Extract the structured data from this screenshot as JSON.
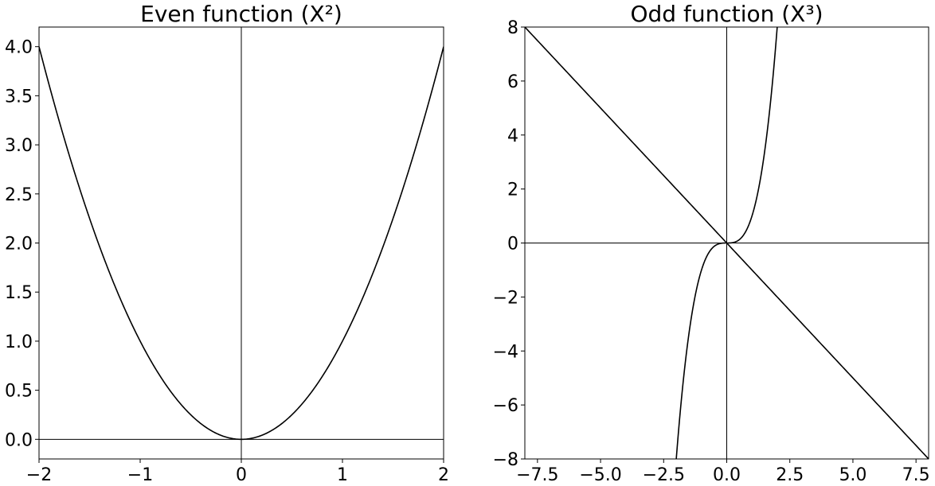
{
  "chart_data": [
    {
      "type": "line",
      "title": "Even function (X²)",
      "xlabel": "",
      "ylabel": "",
      "xlim": [
        -2,
        2
      ],
      "ylim": [
        -0.2,
        4.2
      ],
      "xticks": [
        -2,
        -1,
        0,
        1,
        2
      ],
      "xtick_labels": [
        "−2",
        "−1",
        "0",
        "1",
        "2"
      ],
      "yticks": [
        0.0,
        0.5,
        1.0,
        1.5,
        2.0,
        2.5,
        3.0,
        3.5,
        4.0
      ],
      "ytick_labels": [
        "0.0",
        "0.5",
        "1.0",
        "1.5",
        "2.0",
        "2.5",
        "3.0",
        "3.5",
        "4.0"
      ],
      "grid": false,
      "reference_lines": [
        {
          "axis": "x",
          "value": 0
        },
        {
          "axis": "y",
          "value": 0
        }
      ],
      "series": [
        {
          "name": "x^2",
          "color": "#000000",
          "x_range": [
            -2,
            2
          ],
          "expression": "x^2"
        }
      ]
    },
    {
      "type": "line",
      "title": "Odd function (X³)",
      "xlabel": "",
      "ylabel": "",
      "xlim": [
        -8,
        8
      ],
      "ylim": [
        -8,
        8
      ],
      "xticks": [
        -7.5,
        -5.0,
        -2.5,
        0.0,
        2.5,
        5.0,
        7.5
      ],
      "xtick_labels": [
        "−7.5",
        "−5.0",
        "−2.5",
        "0.0",
        "2.5",
        "5.0",
        "7.5"
      ],
      "yticks": [
        -8,
        -6,
        -4,
        -2,
        0,
        2,
        4,
        6,
        8
      ],
      "ytick_labels": [
        "−8",
        "−6",
        "−4",
        "−2",
        "0",
        "2",
        "4",
        "6",
        "8"
      ],
      "grid": false,
      "reference_lines": [
        {
          "axis": "x",
          "value": 0
        },
        {
          "axis": "y",
          "value": 0
        }
      ],
      "series": [
        {
          "name": "x^3",
          "color": "#000000",
          "x_range": [
            -2,
            2
          ],
          "expression": "x^3"
        },
        {
          "name": "-x",
          "color": "#000000",
          "x_range": [
            -8,
            8
          ],
          "expression": "-x"
        }
      ]
    }
  ]
}
